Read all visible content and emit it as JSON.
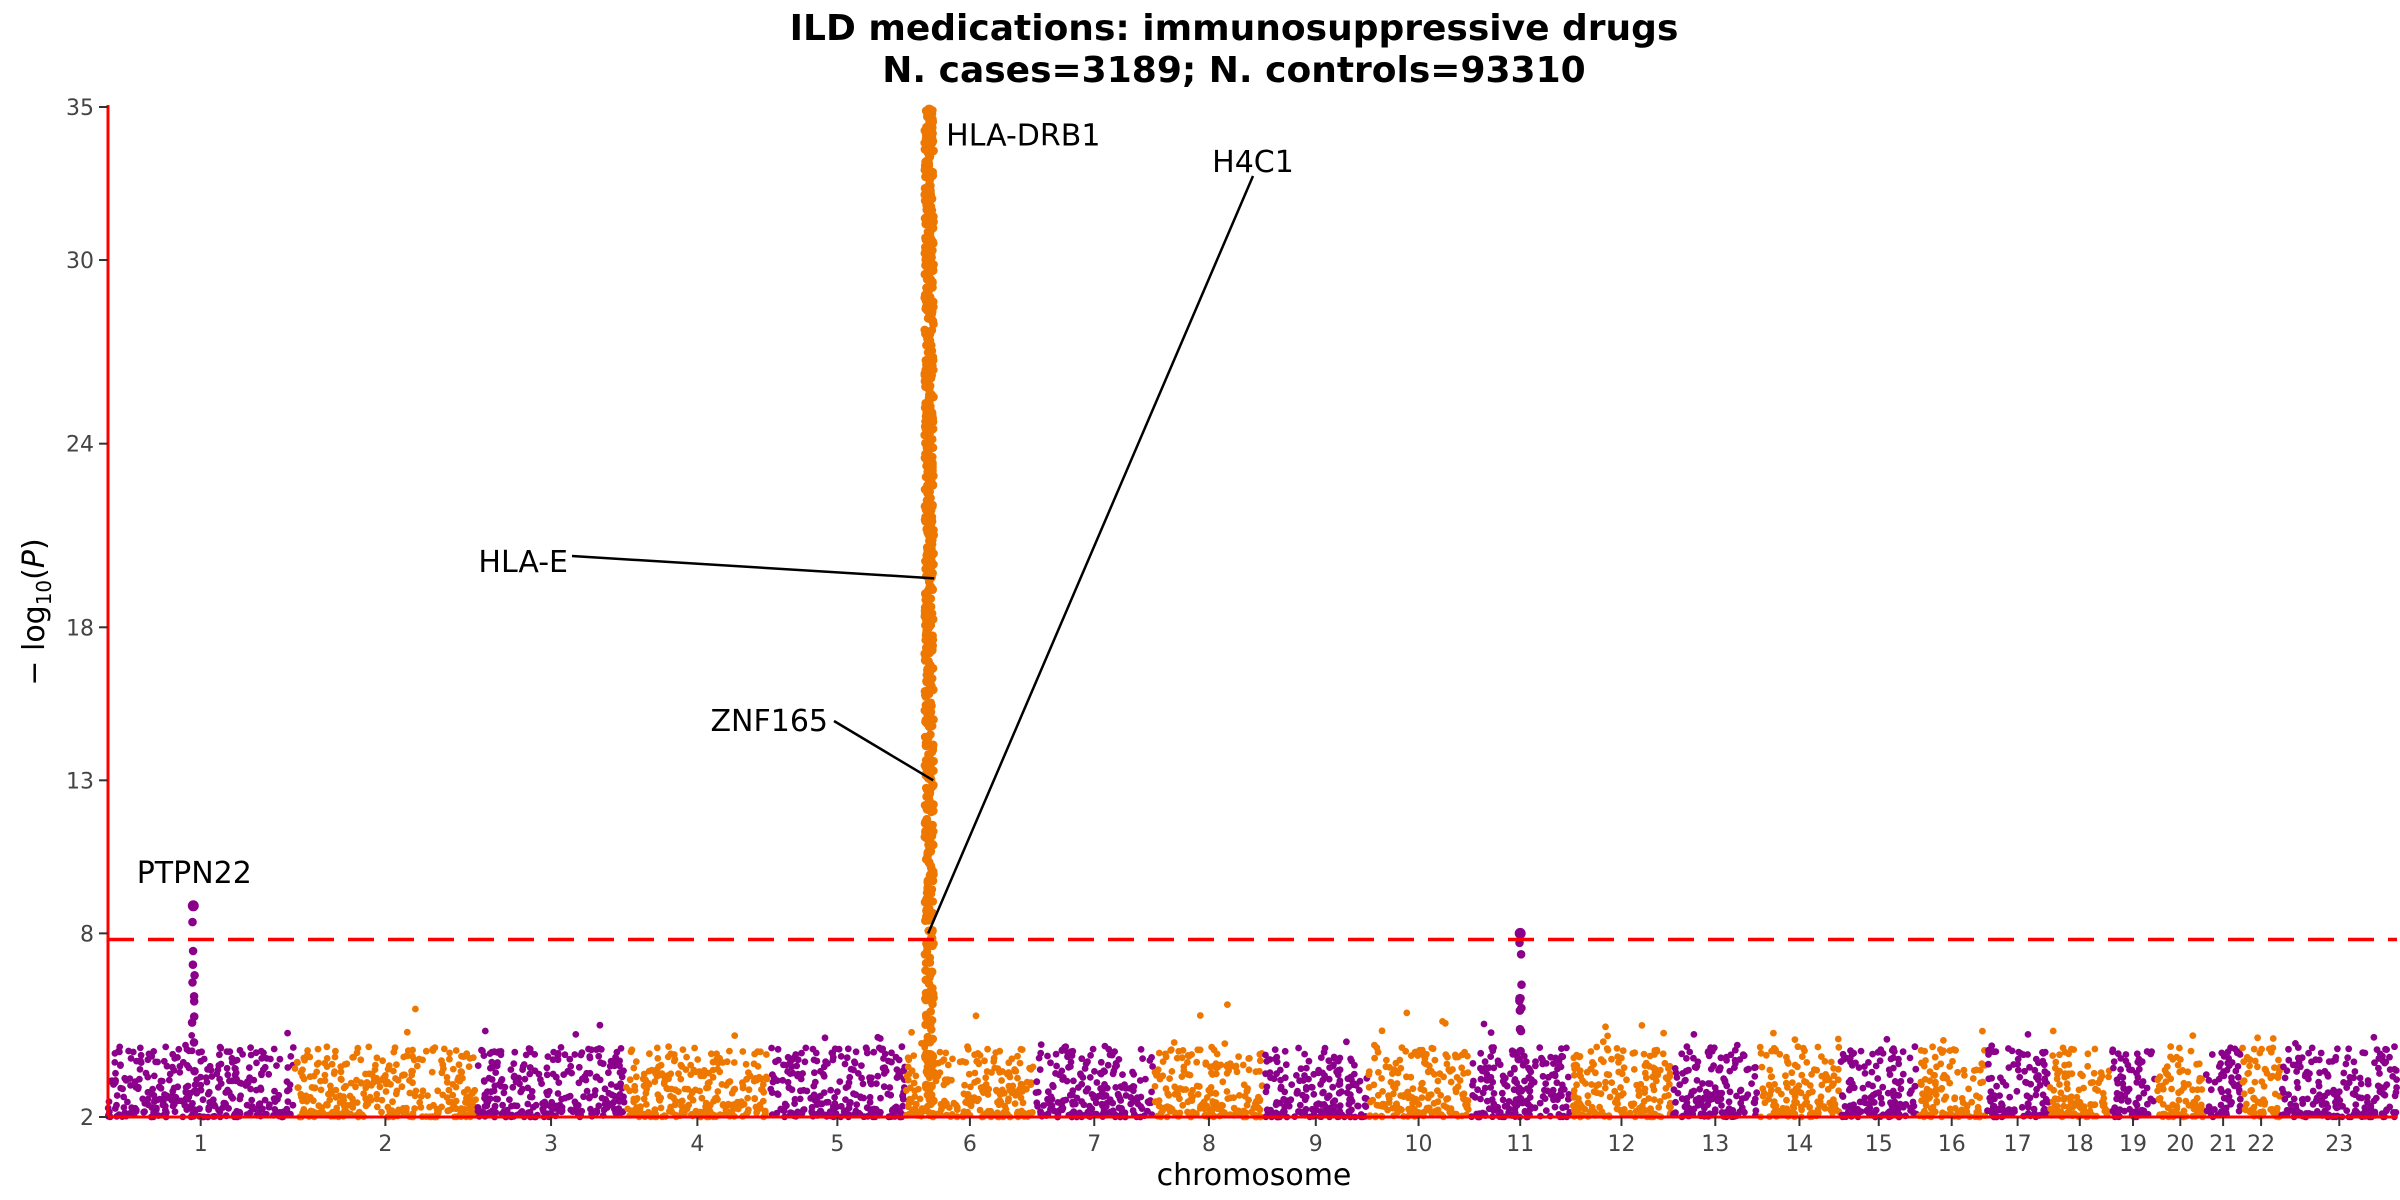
{
  "chart_data": {
    "type": "scatter",
    "subtype": "manhattan",
    "title": "ILD medications: immunosuppressive drugs",
    "subtitle": "N. cases=3189; N. controls=93310",
    "xlabel": "chromosome",
    "ylabel": "− log10(P)",
    "ylabel_parts": {
      "prefix": "− log",
      "sub": "10",
      "suffix": "(",
      "italic": "P",
      "close": ")"
    },
    "ylim": [
      2,
      35
    ],
    "y_ticks": [
      2,
      8,
      13,
      18,
      24,
      30,
      35
    ],
    "threshold": 7.8,
    "colors": {
      "odd": "#8B008B",
      "even": "#EE7700",
      "axis": "#FF0000",
      "threshold": "#FF0000"
    },
    "chromosomes": [
      "1",
      "2",
      "3",
      "4",
      "5",
      "6",
      "7",
      "8",
      "9",
      "10",
      "11",
      "12",
      "13",
      "14",
      "15",
      "16",
      "17",
      "18",
      "19",
      "20",
      "21",
      "22",
      "23"
    ],
    "chrom_lengths": [
      249,
      243,
      198,
      191,
      181,
      171,
      159,
      145,
      138,
      134,
      135,
      133,
      115,
      107,
      102,
      90,
      83,
      80,
      59,
      64,
      47,
      51,
      155
    ],
    "peaks": [
      {
        "chrom": "1",
        "pos": 0.46,
        "max": 8.9,
        "label": "PTPN22"
      },
      {
        "chrom": "6",
        "pos": 0.18,
        "max": 34.9,
        "label": "HLA-DRB1"
      },
      {
        "chrom": "11",
        "pos": 0.5,
        "max": 8.0,
        "label": ""
      }
    ],
    "annotations": [
      {
        "label": "HLA-DRB1",
        "chrom": "6",
        "pos": 0.18,
        "y": 34.1
      },
      {
        "label": "HLA-E",
        "chrom": "6",
        "pos": 0.18,
        "y": 19.6
      },
      {
        "label": "ZNF165",
        "chrom": "6",
        "pos": 0.18,
        "y": 13.0
      },
      {
        "label": "H4C1",
        "chrom": "6",
        "pos": 0.18,
        "y": 8.0
      },
      {
        "label": "PTPN22",
        "chrom": "1",
        "pos": 0.46,
        "y": 8.9
      }
    ]
  }
}
